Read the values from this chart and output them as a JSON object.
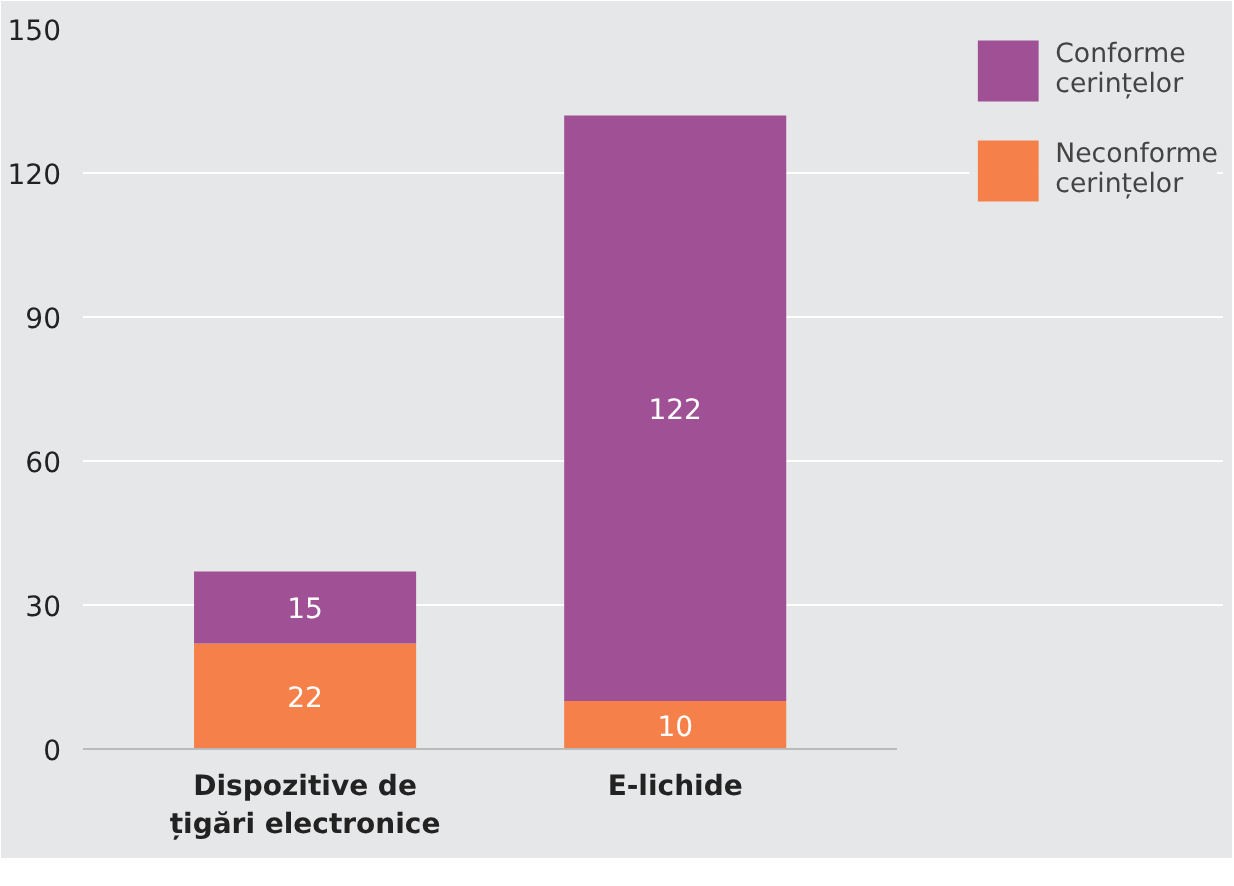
{
  "chart_data": {
    "type": "bar",
    "stacked": true,
    "categories": [
      "Dispozitive de țigări electronice",
      "E-lichide"
    ],
    "series": [
      {
        "name": "Neconforme cerințelor",
        "color": "#f6804a",
        "values": [
          22,
          10
        ]
      },
      {
        "name": "Conforme cerințelor",
        "color": "#a05196",
        "values": [
          15,
          122
        ]
      }
    ],
    "ylim": [
      0,
      150
    ],
    "yticks": [
      0,
      30,
      60,
      90,
      120,
      150
    ],
    "grid": "y",
    "legend": "top right",
    "data_labels": true
  }
}
